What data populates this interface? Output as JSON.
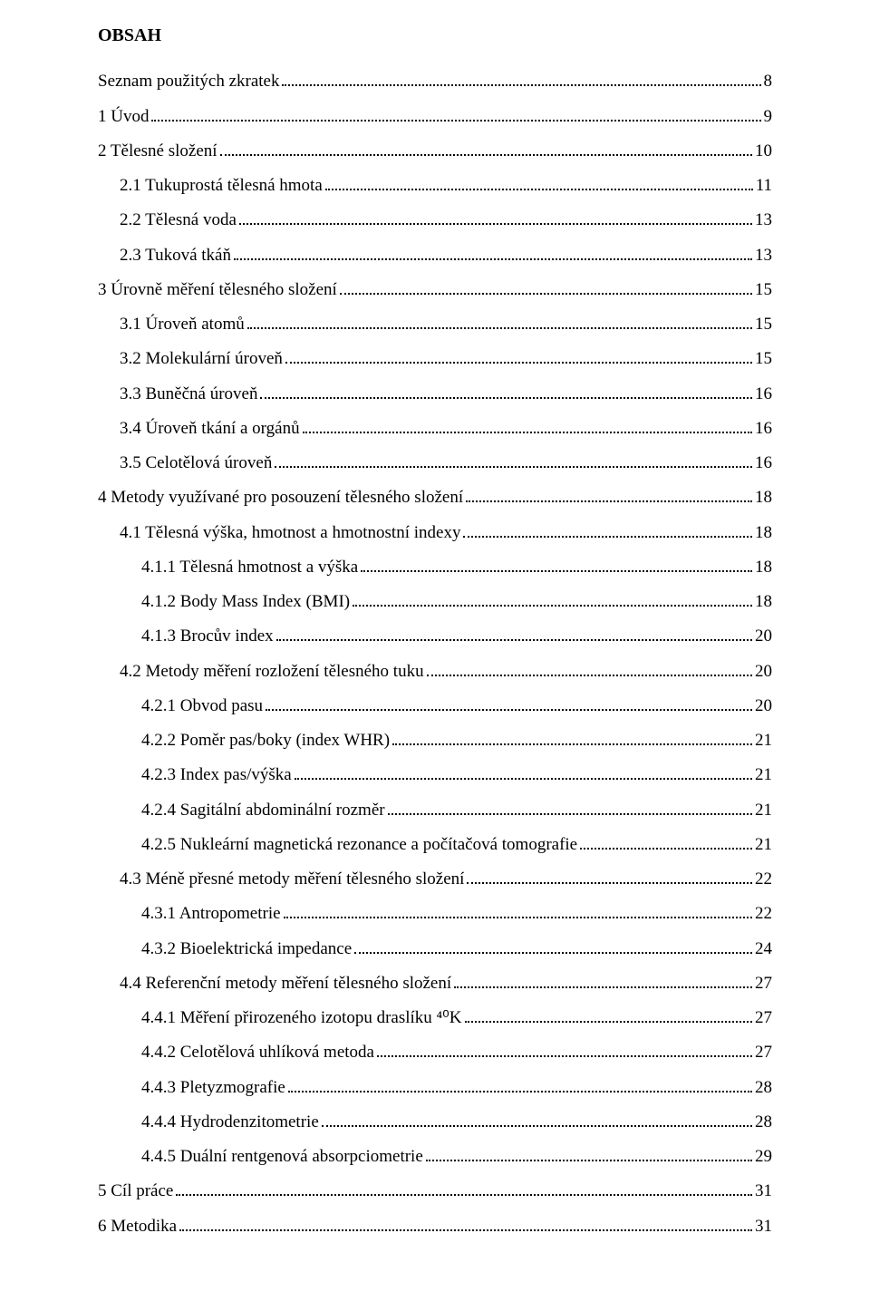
{
  "title": "OBSAH",
  "toc": [
    {
      "indent": 0,
      "label": "Seznam použitých zkratek",
      "page": "8"
    },
    {
      "indent": 0,
      "label": "1 Úvod",
      "page": "9"
    },
    {
      "indent": 0,
      "label": "2 Tělesné složení",
      "page": "10"
    },
    {
      "indent": 1,
      "label": "2.1 Tukuprostá tělesná hmota",
      "page": "11"
    },
    {
      "indent": 1,
      "label": "2.2 Tělesná voda",
      "page": "13"
    },
    {
      "indent": 1,
      "label": "2.3 Tuková tkáň",
      "page": "13"
    },
    {
      "indent": 0,
      "label": "3 Úrovně měření tělesného složení",
      "page": "15"
    },
    {
      "indent": 1,
      "label": "3.1 Úroveň atomů",
      "page": "15"
    },
    {
      "indent": 1,
      "label": "3.2 Molekulární úroveň",
      "page": "15"
    },
    {
      "indent": 1,
      "label": "3.3 Buněčná úroveň",
      "page": "16"
    },
    {
      "indent": 1,
      "label": "3.4 Úroveň tkání a orgánů",
      "page": "16"
    },
    {
      "indent": 1,
      "label": "3.5 Celotělová úroveň",
      "page": "16"
    },
    {
      "indent": 0,
      "label": "4 Metody využívané pro posouzení tělesného složení",
      "page": "18"
    },
    {
      "indent": 1,
      "label": "4.1 Tělesná výška, hmotnost a hmotnostní indexy",
      "page": "18"
    },
    {
      "indent": 2,
      "label": "4.1.1 Tělesná hmotnost a výška",
      "page": "18"
    },
    {
      "indent": 2,
      "label": "4.1.2 Body Mass Index (BMI)",
      "page": "18"
    },
    {
      "indent": 2,
      "label": "4.1.3 Brocův index",
      "page": "20"
    },
    {
      "indent": 1,
      "label": "4.2 Metody měření rozložení tělesného tuku",
      "page": "20"
    },
    {
      "indent": 2,
      "label": "4.2.1 Obvod pasu",
      "page": "20"
    },
    {
      "indent": 2,
      "label": "4.2.2 Poměr pas/boky (index WHR)",
      "page": "21"
    },
    {
      "indent": 2,
      "label": "4.2.3 Index pas/výška",
      "page": "21"
    },
    {
      "indent": 2,
      "label": "4.2.4 Sagitální abdominální rozměr",
      "page": "21"
    },
    {
      "indent": 2,
      "label": "4.2.5 Nukleární magnetická rezonance a počítačová tomografie",
      "page": "21"
    },
    {
      "indent": 1,
      "label": "4.3 Méně přesné metody měření tělesného složení",
      "page": "22"
    },
    {
      "indent": 2,
      "label": "4.3.1 Antropometrie",
      "page": "22"
    },
    {
      "indent": 2,
      "label": "4.3.2 Bioelektrická impedance",
      "page": "24"
    },
    {
      "indent": 1,
      "label": "4.4 Referenční metody měření tělesného složení",
      "page": "27"
    },
    {
      "indent": 2,
      "label": "4.4.1 Měření přirozeného izotopu draslíku ⁴⁰K",
      "page": "27"
    },
    {
      "indent": 2,
      "label": "4.4.2 Celotělová uhlíková metoda",
      "page": "27"
    },
    {
      "indent": 2,
      "label": "4.4.3 Pletyzmografie",
      "page": "28"
    },
    {
      "indent": 2,
      "label": "4.4.4 Hydrodenzitometrie",
      "page": "28"
    },
    {
      "indent": 2,
      "label": "4.4.5 Duální rentgenová absorpciometrie",
      "page": "29"
    },
    {
      "indent": 0,
      "label": "5 Cíl práce",
      "page": "31"
    },
    {
      "indent": 0,
      "label": "6 Metodika",
      "page": "31"
    }
  ]
}
